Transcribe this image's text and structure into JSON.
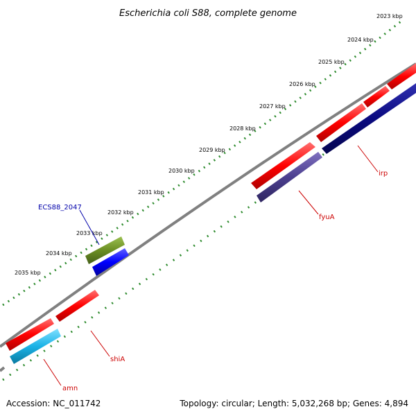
{
  "title": "Escherichia coli S88, complete genome",
  "footer": {
    "accession": "Accession: NC_011742",
    "summary": "Topology: circular; Length: 5,032,268 bp; Genes: 4,894"
  },
  "ruler": {
    "unit": "kbp",
    "labels": [
      "2023 kbp",
      "2024 kbp",
      "2025 kbp",
      "2026 kbp",
      "2027 kbp",
      "2028 kbp",
      "2029 kbp",
      "2030 kbp",
      "2031 kbp",
      "2032 kbp",
      "2033 kbp",
      "2034 kbp",
      "2035 kbp"
    ]
  },
  "gene_labels": {
    "irp": "irp",
    "fyuA": "fyuA",
    "ECS88_2047": "ECS88_2047",
    "shiA": "shiA",
    "amn": "amn"
  },
  "colors": {
    "backbone": "#808080",
    "tick": "#2e8b2e",
    "forward_gene": "#ff0000",
    "reverse_gene_dark": "#0a0a80",
    "fyuA_gene": "#4b3f8f",
    "olive_gene": "#6b8e23",
    "blue_gene": "#0000ff",
    "cyan_gene": "#1ab2e6",
    "label_red": "#cc0000",
    "label_blue": "#0000aa"
  }
}
